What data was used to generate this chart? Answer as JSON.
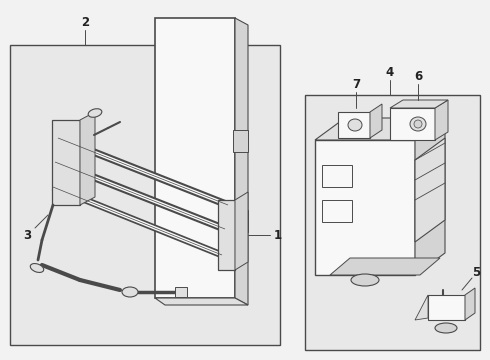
{
  "bg": "#f2f2f2",
  "lc": "#4a4a4a",
  "fc_box": "#e8e8e8",
  "fc_white": "#f8f8f8",
  "fc_gray": "#d4d4d4",
  "fc_mid": "#e0e0e0"
}
